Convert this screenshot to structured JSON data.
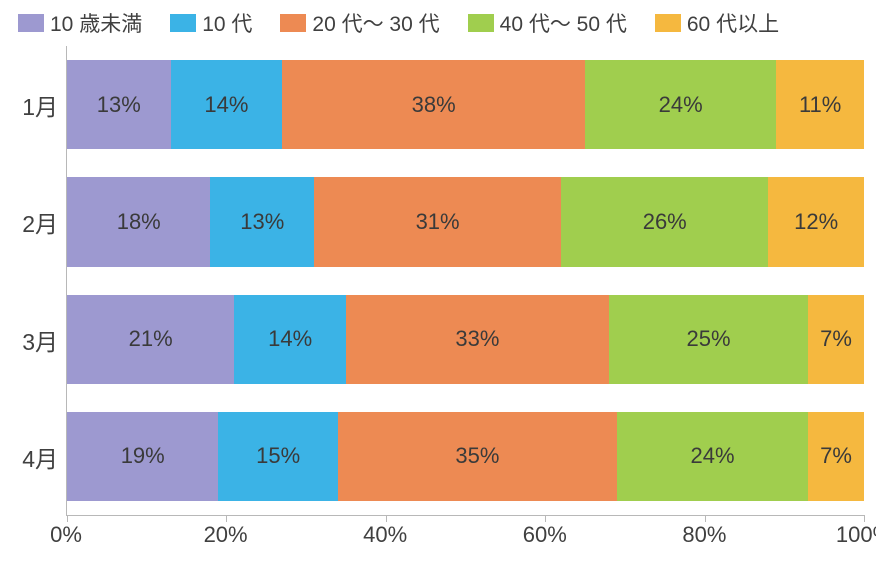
{
  "chart": {
    "type": "stacked-bar-horizontal",
    "background_color": "#ffffff",
    "text_color": "#404040",
    "axis_color": "#b8b8b8",
    "font_family": "Hiragino Sans, Meiryo, Yu Gothic, sans-serif",
    "legend_fontsize": 21,
    "category_label_fontsize": 23,
    "value_label_fontsize": 22,
    "x_axis_fontsize": 22,
    "x_axis": {
      "min": 0,
      "max": 100,
      "tick_step": 20,
      "tick_suffix": "%",
      "tick_labels": [
        "0%",
        "20%",
        "40%",
        "60%",
        "80%",
        "100%"
      ]
    },
    "series": [
      {
        "key": "u10",
        "label": "10 歳未満",
        "color": "#9d99d0"
      },
      {
        "key": "teens",
        "label": "10 代",
        "color": "#3bb3e6"
      },
      {
        "key": "s2030",
        "label": "20 代～ 30 代",
        "color": "#ed8a53"
      },
      {
        "key": "s4050",
        "label": "40 代～ 50 代",
        "color": "#a0ce4e"
      },
      {
        "key": "s60p",
        "label": "60 代以上",
        "color": "#f5b83f"
      }
    ],
    "categories": [
      {
        "label": "1月",
        "values": {
          "u10": 13,
          "teens": 14,
          "s2030": 38,
          "s4050": 24,
          "s60p": 11
        }
      },
      {
        "label": "2月",
        "values": {
          "u10": 18,
          "teens": 13,
          "s2030": 31,
          "s4050": 26,
          "s60p": 12
        }
      },
      {
        "label": "3月",
        "values": {
          "u10": 21,
          "teens": 14,
          "s2030": 33,
          "s4050": 25,
          "s60p": 7
        }
      },
      {
        "label": "4月",
        "values": {
          "u10": 19,
          "teens": 15,
          "s2030": 35,
          "s4050": 24,
          "s60p": 7
        }
      }
    ],
    "bar_gap_ratio": 0.28,
    "value_label_suffix": "%"
  }
}
